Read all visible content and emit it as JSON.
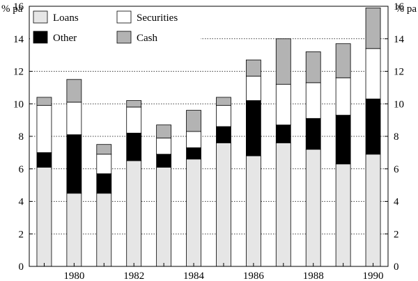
{
  "colors": {
    "Loans": "#e6e6e6",
    "Other": "#000000",
    "Securities": "#ffffff",
    "Cash": "#b3b3b3"
  },
  "units": {
    "left": "% pa",
    "right": "% pa"
  },
  "chart_data": {
    "type": "bar",
    "stacked": true,
    "categories": [
      "1979",
      "1980",
      "1981",
      "1982",
      "1983",
      "1984",
      "1985",
      "1986",
      "1987",
      "1988",
      "1989",
      "1990"
    ],
    "x_tick_labels": [
      "",
      "1980",
      "",
      "1982",
      "",
      "1984",
      "",
      "1986",
      "",
      "1988",
      "",
      "1990"
    ],
    "series": [
      {
        "name": "Loans",
        "values": [
          6.1,
          4.5,
          4.5,
          6.5,
          6.1,
          6.6,
          7.6,
          6.8,
          7.6,
          7.2,
          6.3,
          6.9
        ]
      },
      {
        "name": "Other",
        "values": [
          0.9,
          3.6,
          1.2,
          1.7,
          0.8,
          0.7,
          1.0,
          3.4,
          1.1,
          1.9,
          3.0,
          3.4
        ]
      },
      {
        "name": "Securities",
        "values": [
          2.9,
          2.0,
          1.2,
          1.6,
          1.0,
          1.0,
          1.3,
          1.5,
          2.5,
          2.2,
          2.3,
          3.1
        ]
      },
      {
        "name": "Cash",
        "values": [
          0.5,
          1.4,
          0.6,
          0.4,
          0.8,
          1.3,
          0.5,
          1.0,
          2.8,
          1.9,
          2.1,
          2.5
        ]
      }
    ],
    "ylim": [
      0,
      16
    ],
    "yticks": [
      0,
      2,
      4,
      6,
      8,
      10,
      12,
      14,
      16
    ],
    "xlabel": "",
    "ylabel": "% pa",
    "y2label": "% pa",
    "grid": "horizontal dotted",
    "legend": {
      "placement": "top-left",
      "entries": [
        "Loans",
        "Securities",
        "Other",
        "Cash"
      ]
    }
  }
}
